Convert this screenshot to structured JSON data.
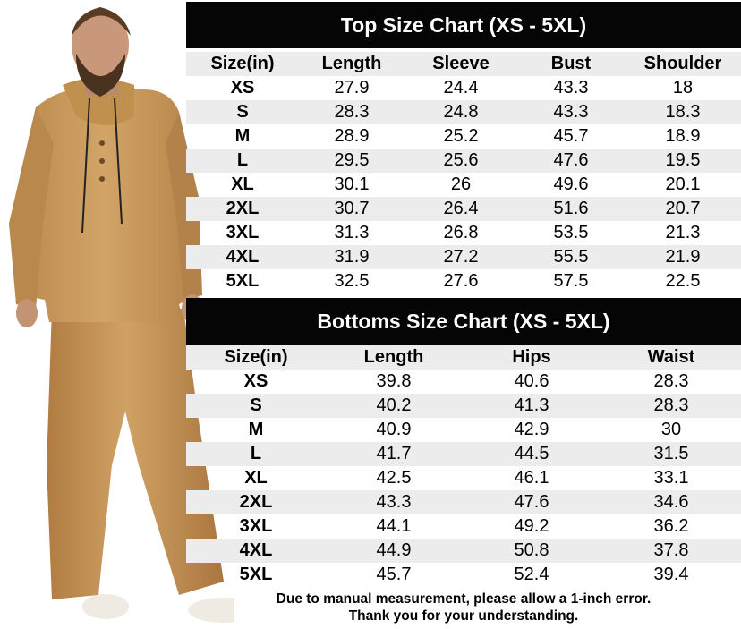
{
  "top_chart": {
    "title": "Top Size Chart (XS - 5XL)",
    "headers": [
      "Size(in)",
      "Length",
      "Sleeve",
      "Bust",
      "Shoulder"
    ],
    "rows": [
      [
        "XS",
        "27.9",
        "24.4",
        "43.3",
        "18"
      ],
      [
        "S",
        "28.3",
        "24.8",
        "43.3",
        "18.3"
      ],
      [
        "M",
        "28.9",
        "25.2",
        "45.7",
        "18.9"
      ],
      [
        "L",
        "29.5",
        "25.6",
        "47.6",
        "19.5"
      ],
      [
        "XL",
        "30.1",
        "26",
        "49.6",
        "20.1"
      ],
      [
        "2XL",
        "30.7",
        "26.4",
        "51.6",
        "20.7"
      ],
      [
        "3XL",
        "31.3",
        "26.8",
        "53.5",
        "21.3"
      ],
      [
        "4XL",
        "31.9",
        "27.2",
        "55.5",
        "21.9"
      ],
      [
        "5XL",
        "32.5",
        "27.6",
        "57.5",
        "22.5"
      ]
    ]
  },
  "bottom_chart": {
    "title": "Bottoms Size Chart (XS - 5XL)",
    "headers": [
      "Size(in)",
      "Length",
      "Hips",
      "Waist"
    ],
    "rows": [
      [
        "XS",
        "39.8",
        "40.6",
        "28.3"
      ],
      [
        "S",
        "40.2",
        "41.3",
        "28.3"
      ],
      [
        "M",
        "40.9",
        "42.9",
        "30"
      ],
      [
        "L",
        "41.7",
        "44.5",
        "31.5"
      ],
      [
        "XL",
        "42.5",
        "46.1",
        "33.1"
      ],
      [
        "2XL",
        "43.3",
        "47.6",
        "34.6"
      ],
      [
        "3XL",
        "44.1",
        "49.2",
        "36.2"
      ],
      [
        "4XL",
        "44.9",
        "50.8",
        "37.8"
      ],
      [
        "5XL",
        "45.7",
        "52.4",
        "39.4"
      ]
    ]
  },
  "note": {
    "line1": "Due to manual measurement, please allow a 1-inch error.",
    "line2": "Thank you for your understanding."
  },
  "colors": {
    "title_bar": "#050505",
    "row_shade": "#ececec",
    "garment": "#c99a5b"
  }
}
